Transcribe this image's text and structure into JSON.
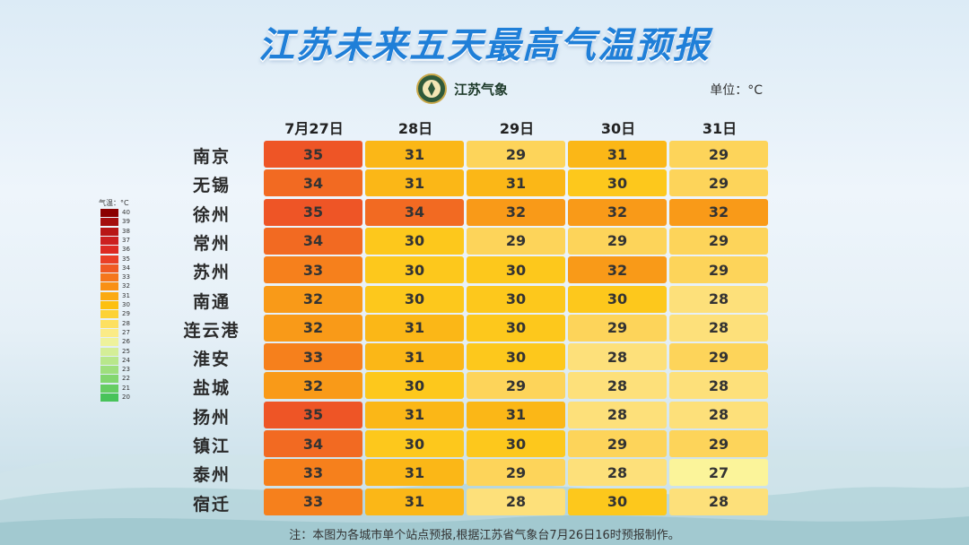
{
  "title": "江苏未来五天最高气温预报",
  "logo": {
    "text": "江苏气象"
  },
  "unit_label": "单位：°C",
  "legend": {
    "title": "气温：°C",
    "items": [
      {
        "label": "40",
        "color": "#8b0000"
      },
      {
        "label": "39",
        "color": "#a50e0e"
      },
      {
        "label": "38",
        "color": "#b81616"
      },
      {
        "label": "37",
        "color": "#cc1f1f"
      },
      {
        "label": "36",
        "color": "#dd2a22"
      },
      {
        "label": "35",
        "color": "#ea3f26"
      },
      {
        "label": "34",
        "color": "#f05a23"
      },
      {
        "label": "33",
        "color": "#f5761c"
      },
      {
        "label": "32",
        "color": "#f99015"
      },
      {
        "label": "31",
        "color": "#fbaa12"
      },
      {
        "label": "30",
        "color": "#fdc010"
      },
      {
        "label": "29",
        "color": "#fdd235"
      },
      {
        "label": "28",
        "color": "#fde060"
      },
      {
        "label": "27",
        "color": "#fbeb86"
      },
      {
        "label": "26",
        "color": "#eef29c"
      },
      {
        "label": "25",
        "color": "#d4ee97"
      },
      {
        "label": "24",
        "color": "#b8e78b"
      },
      {
        "label": "23",
        "color": "#9edf7d"
      },
      {
        "label": "22",
        "color": "#82d66f"
      },
      {
        "label": "21",
        "color": "#66cd63"
      },
      {
        "label": "20",
        "color": "#48c35a"
      }
    ]
  },
  "chart_data": {
    "type": "heatmap",
    "title": "江苏未来五天最高气温预报",
    "unit": "°C",
    "columns": [
      "7月27日",
      "28日",
      "29日",
      "30日",
      "31日"
    ],
    "rows": [
      "南京",
      "无锡",
      "徐州",
      "常州",
      "苏州",
      "南通",
      "连云港",
      "淮安",
      "盐城",
      "扬州",
      "镇江",
      "泰州",
      "宿迁"
    ],
    "values": [
      [
        35,
        31,
        29,
        31,
        29
      ],
      [
        34,
        31,
        31,
        30,
        29
      ],
      [
        35,
        34,
        32,
        32,
        32
      ],
      [
        34,
        30,
        29,
        29,
        29
      ],
      [
        33,
        30,
        30,
        32,
        29
      ],
      [
        32,
        30,
        30,
        30,
        28
      ],
      [
        32,
        31,
        30,
        29,
        28
      ],
      [
        33,
        31,
        30,
        28,
        29
      ],
      [
        32,
        30,
        29,
        28,
        28
      ],
      [
        35,
        31,
        31,
        28,
        28
      ],
      [
        34,
        30,
        30,
        29,
        29
      ],
      [
        33,
        31,
        29,
        28,
        27
      ],
      [
        33,
        31,
        28,
        30,
        28
      ]
    ],
    "colors": {
      "27": "#fbf49a",
      "28": "#fde07a",
      "29": "#fdd45a",
      "30": "#fdc81c",
      "31": "#fbb717",
      "32": "#f99a18",
      "33": "#f6801c",
      "34": "#f26a22",
      "35": "#ee5526"
    }
  },
  "footnote": "注：本图为各城市单个站点预报,根据江苏省气象台7月26日16时预报制作。"
}
